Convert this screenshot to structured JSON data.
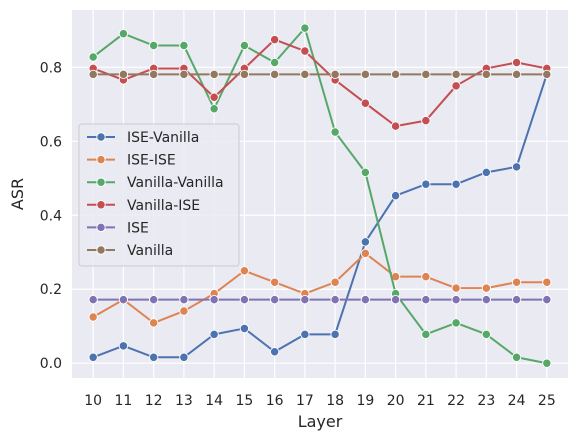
{
  "chart_data": {
    "type": "line",
    "xlabel": "Layer",
    "ylabel": "ASR",
    "x": [
      10,
      11,
      12,
      13,
      14,
      15,
      16,
      17,
      18,
      19,
      20,
      21,
      22,
      23,
      24,
      25
    ],
    "xlim": [
      9.3,
      25.7
    ],
    "ylim": [
      -0.04,
      0.955
    ],
    "yticks": [
      0.0,
      0.2,
      0.4,
      0.6,
      0.8
    ],
    "ytick_labels": [
      "0.0",
      "0.2",
      "0.4",
      "0.6",
      "0.8"
    ],
    "grid": true,
    "legend_position": "center-left",
    "background": "#eaeaf2",
    "series": [
      {
        "name": "ISE-Vanilla",
        "color": "#4c72b0",
        "values": [
          0.016,
          0.047,
          0.016,
          0.016,
          0.078,
          0.094,
          0.031,
          0.078,
          0.078,
          0.328,
          0.453,
          0.484,
          0.484,
          0.516,
          0.531,
          0.781
        ]
      },
      {
        "name": "ISE-ISE",
        "color": "#dd8452",
        "values": [
          0.125,
          0.172,
          0.109,
          0.141,
          0.188,
          0.25,
          0.219,
          0.188,
          0.219,
          0.297,
          0.234,
          0.234,
          0.203,
          0.203,
          0.219,
          0.219
        ]
      },
      {
        "name": "Vanilla-Vanilla",
        "color": "#55a868",
        "values": [
          0.828,
          0.891,
          0.859,
          0.859,
          0.688,
          0.859,
          0.813,
          0.906,
          0.625,
          0.516,
          0.188,
          0.078,
          0.109,
          0.078,
          0.016,
          0.0
        ]
      },
      {
        "name": "Vanilla-ISE",
        "color": "#c44e52",
        "values": [
          0.797,
          0.766,
          0.797,
          0.797,
          0.719,
          0.797,
          0.875,
          0.844,
          0.766,
          0.703,
          0.641,
          0.656,
          0.75,
          0.797,
          0.813,
          0.797
        ]
      },
      {
        "name": "ISE",
        "color": "#8172b3",
        "values": [
          0.172,
          0.172,
          0.172,
          0.172,
          0.172,
          0.172,
          0.172,
          0.172,
          0.172,
          0.172,
          0.172,
          0.172,
          0.172,
          0.172,
          0.172,
          0.172
        ]
      },
      {
        "name": "Vanilla",
        "color": "#937860",
        "values": [
          0.781,
          0.781,
          0.781,
          0.781,
          0.781,
          0.781,
          0.781,
          0.781,
          0.781,
          0.781,
          0.781,
          0.781,
          0.781,
          0.781,
          0.781,
          0.781
        ]
      }
    ]
  }
}
